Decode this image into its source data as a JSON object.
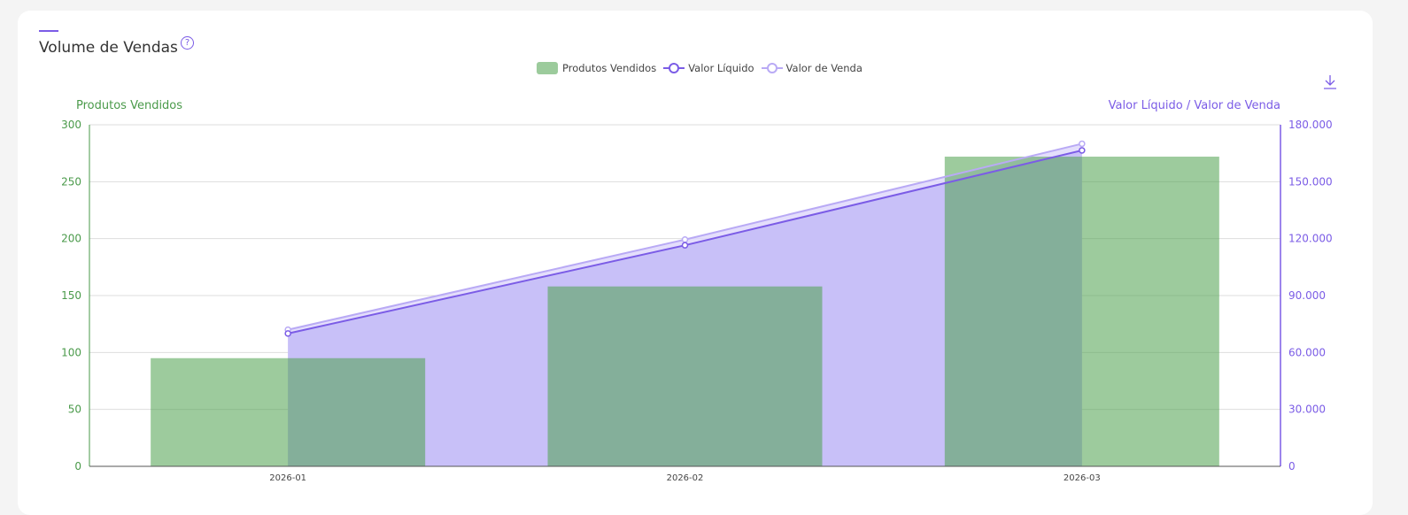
{
  "card": {
    "title": "Volume de Vendas",
    "help_icon": "?",
    "download_icon": "download-icon"
  },
  "legend": [
    {
      "label": "Produtos Vendidos",
      "color": "#9ccb9c",
      "style": "bar"
    },
    {
      "label": "Valor Líquido",
      "color": "#7b5ce6",
      "style": "line"
    },
    {
      "label": "Valor de Venda",
      "color": "#b9aaf5",
      "style": "line"
    }
  ],
  "chart_data": {
    "type": "bar+line",
    "categories": [
      "2026-01",
      "2026-02",
      "2026-03"
    ],
    "series": [
      {
        "name": "Produtos Vendidos",
        "type": "bar",
        "axis": "left",
        "values": [
          95,
          158,
          272
        ],
        "color": "#9ccb9c"
      },
      {
        "name": "Valor Líquido",
        "type": "line",
        "area": true,
        "axis": "right",
        "values": [
          70000,
          116500,
          166500
        ],
        "color": "#7b5ce6"
      },
      {
        "name": "Valor de Venda",
        "type": "line",
        "area": true,
        "axis": "right",
        "values": [
          72000,
          119500,
          170000
        ],
        "color": "#b9aaf5"
      }
    ],
    "ylabel_left": "Produtos Vendidos",
    "ylabel_right": "Valor Líquido / Valor de Venda",
    "ylim_left": [
      0,
      300
    ],
    "ylim_right": [
      0,
      180000
    ],
    "yticks_left": [
      "0",
      "50",
      "100",
      "150",
      "200",
      "250",
      "300"
    ],
    "yticks_right": [
      "0",
      "30.000",
      "60.000",
      "90.000",
      "120.000",
      "150.000",
      "180.000"
    ],
    "grid": true,
    "legend_position": "top"
  }
}
